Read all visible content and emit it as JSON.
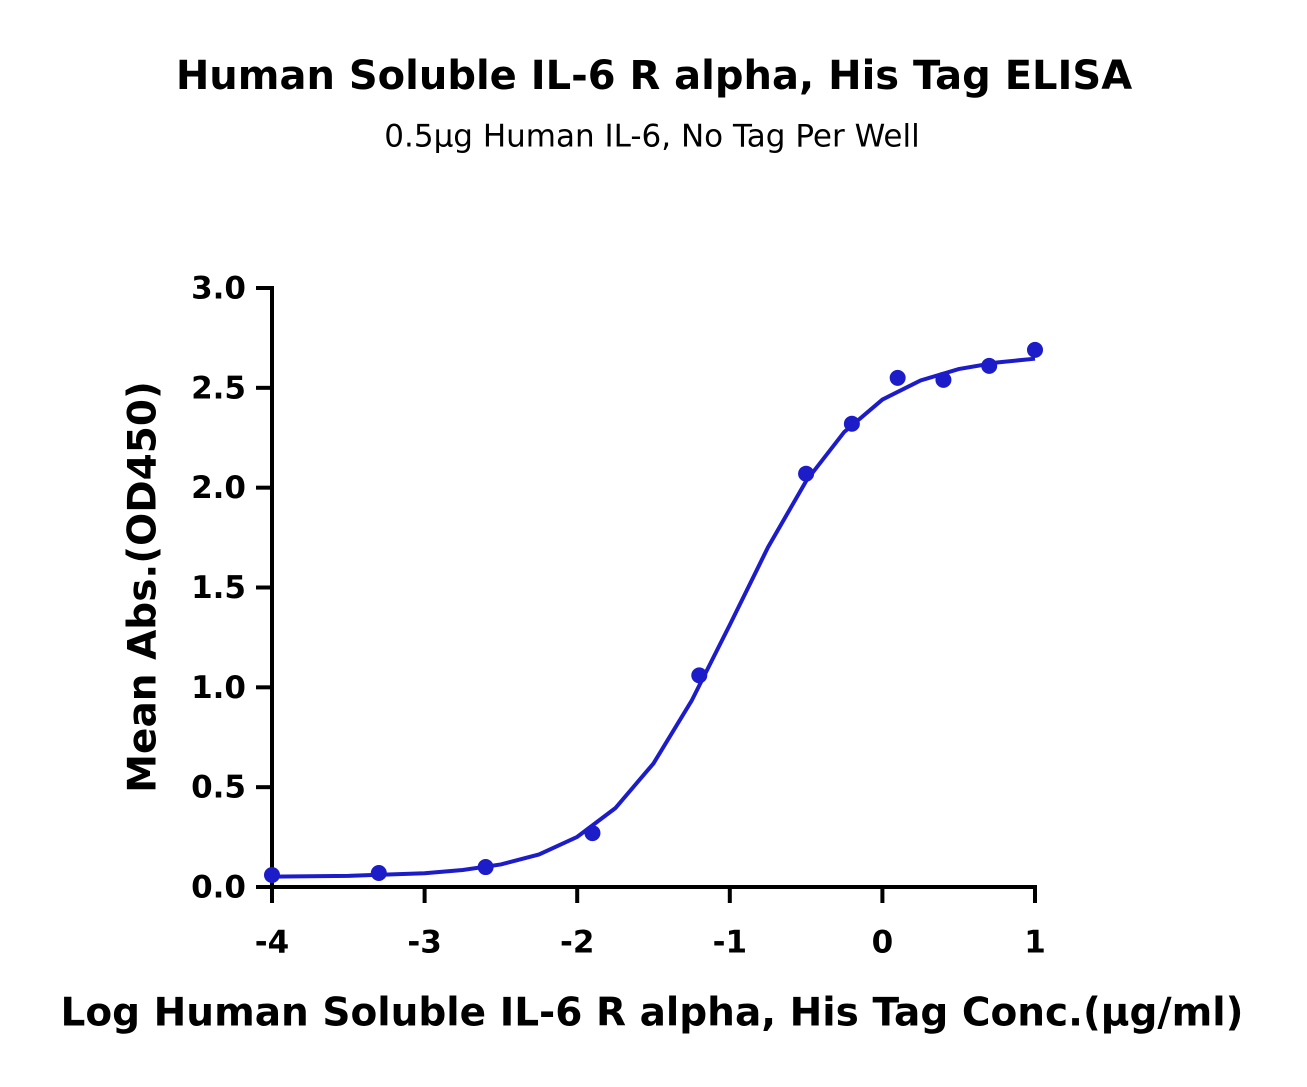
{
  "chart_data": {
    "type": "scatter",
    "title": "Human Soluble IL-6 R alpha, His Tag ELISA",
    "subtitle": "0.5μg Human IL-6, No Tag Per Well",
    "x_label": "Log Human Soluble IL-6 R alpha, His Tag Conc.(μg/ml)",
    "y_label": "Mean Abs.(OD450)",
    "color": "#1c1cc8",
    "x": [
      -4,
      -3.3,
      -2.6,
      -1.9,
      -1.2,
      -0.5,
      -0.2,
      0.1,
      0.4,
      0.7,
      1.0
    ],
    "values": [
      0.06,
      0.07,
      0.1,
      0.27,
      1.06,
      2.07,
      2.32,
      2.55,
      2.54,
      2.61,
      2.69
    ],
    "fit": {
      "x": [
        -4,
        -3.5,
        -3,
        -2.75,
        -2.5,
        -2.25,
        -2,
        -1.75,
        -1.5,
        -1.25,
        -1,
        -0.75,
        -0.5,
        -0.25,
        0,
        0.25,
        0.5,
        0.75,
        1
      ],
      "values": [
        0.052,
        0.056,
        0.069,
        0.085,
        0.113,
        0.163,
        0.251,
        0.395,
        0.619,
        0.933,
        1.313,
        1.701,
        2.033,
        2.279,
        2.441,
        2.537,
        2.594,
        2.627,
        2.646
      ]
    },
    "xlim": [
      -4,
      1
    ],
    "xticks": [
      -4,
      -3,
      -2,
      -1,
      0,
      1
    ],
    "ylim": [
      0,
      3.0
    ],
    "yticks": [
      {
        "value": 0,
        "label": "0.0"
      },
      {
        "value": 0.5,
        "label": "0.5"
      },
      {
        "value": 1,
        "label": "1.0"
      },
      {
        "value": 1.5,
        "label": "1.5"
      },
      {
        "value": 2,
        "label": "2.0"
      },
      {
        "value": 2.5,
        "label": "2.5"
      },
      {
        "value": 3,
        "label": "3.0"
      }
    ]
  }
}
